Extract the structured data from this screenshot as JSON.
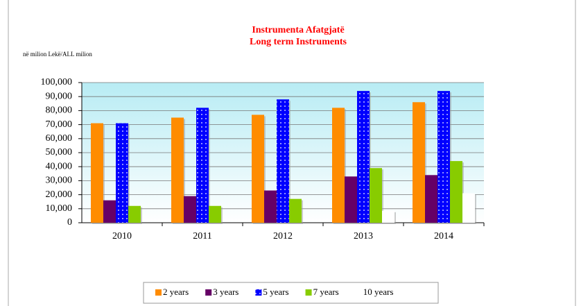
{
  "chart_data": {
    "type": "bar",
    "title": [
      "Instrumenta Afatgjatë",
      "Long term Instruments"
    ],
    "unit_label": "në milion Lekë/ALL milion",
    "categories": [
      "2010",
      "2011",
      "2012",
      "2013",
      "2014"
    ],
    "series": [
      {
        "name": "2 years",
        "color": "#ff8c00",
        "values": [
          71000,
          75000,
          77000,
          82000,
          86000
        ]
      },
      {
        "name": "3 years",
        "color": "#660066",
        "values": [
          16000,
          19000,
          23000,
          33000,
          34000
        ]
      },
      {
        "name": "5 years",
        "color": "#0000ff",
        "pattern": "dots",
        "values": [
          71000,
          82000,
          88000,
          94000,
          94000
        ]
      },
      {
        "name": "7 years",
        "color": "#88cc00",
        "values": [
          12000,
          12000,
          17000,
          39000,
          44000
        ]
      },
      {
        "name": "10 years",
        "color": "#ffffff",
        "values": [
          0,
          0,
          0,
          8500,
          21000
        ]
      }
    ],
    "ylim": [
      0,
      100000
    ],
    "yticks": [
      0,
      {
        "value": 10000,
        "label": "10,000"
      },
      {
        "value": 20000,
        "label": "20,000"
      },
      {
        "value": 30000,
        "label": "30,000"
      },
      {
        "value": 40000,
        "label": "40,000"
      },
      {
        "value": 50000,
        "label": "50,000"
      },
      {
        "value": 60000,
        "label": "60,000"
      },
      {
        "value": 70000,
        "label": "70,000"
      },
      {
        "value": 80000,
        "label": "80,000"
      },
      {
        "value": 90000,
        "label": "90,000"
      },
      {
        "value": 100000,
        "label": "100,000"
      }
    ],
    "grid": true,
    "legend": "bottom"
  }
}
